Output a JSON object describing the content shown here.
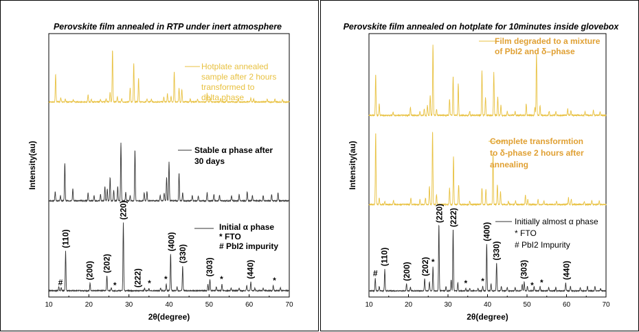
{
  "colors": {
    "yellow": "#e8c140",
    "orange": "#e0a033",
    "black": "#333333"
  },
  "chart_data": [
    {
      "type": "line",
      "title": "Perovskite film annealed in RTP under inert atmosphere",
      "xlabel": "2θ(degree)",
      "ylabel": "Intensity(au)",
      "xlim": [
        10,
        70
      ],
      "xticks": [
        "10",
        "20",
        "30",
        "40",
        "50",
        "60",
        "70"
      ],
      "series": [
        {
          "color": "#e8c140",
          "legend_lines": [
            "Hotplate annealed",
            "sample after 2 hours",
            " transformed to",
            "delta phase"
          ],
          "legend_bold": false,
          "peaks": [
            [
              11.7,
              1
            ],
            [
              13,
              0.15
            ],
            [
              14.1,
              0.1
            ],
            [
              16.1,
              0.08
            ],
            [
              19.8,
              0.25
            ],
            [
              20.6,
              0.1
            ],
            [
              22.9,
              0.1
            ],
            [
              24.3,
              0.12
            ],
            [
              25.3,
              0.35
            ],
            [
              25.9,
              1.9
            ],
            [
              27.1,
              0.18
            ],
            [
              28.2,
              0.12
            ],
            [
              30.3,
              0.5
            ],
            [
              31.2,
              1.4
            ],
            [
              32.4,
              0.85
            ],
            [
              34.5,
              0.12
            ],
            [
              35.6,
              0.1
            ],
            [
              38.7,
              0.18
            ],
            [
              39.6,
              0.3
            ],
            [
              40.5,
              0.2
            ],
            [
              41.3,
              1.1
            ],
            [
              42.5,
              0.5
            ],
            [
              43.2,
              0.45
            ],
            [
              45.3,
              0.1
            ],
            [
              47.1,
              0.1
            ],
            [
              49.5,
              0.3
            ],
            [
              50.3,
              0.15
            ],
            [
              52.9,
              0.12
            ],
            [
              54.4,
              0.1
            ],
            [
              57.3,
              0.1
            ],
            [
              60.4,
              0.15
            ],
            [
              61.1,
              0.12
            ],
            [
              64.5,
              0.1
            ],
            [
              66.4,
              0.1
            ],
            [
              68.3,
              0.08
            ]
          ]
        },
        {
          "color": "#333333",
          "legend_lines": [
            "Stable α phase after",
            "30 days"
          ],
          "legend_bold": true,
          "peaks": [
            [
              11.6,
              0.35
            ],
            [
              12.9,
              0.2
            ],
            [
              14,
              1.45
            ],
            [
              16,
              0.45
            ],
            [
              19.8,
              0.3
            ],
            [
              21.3,
              0.2
            ],
            [
              22.9,
              0.25
            ],
            [
              24,
              0.55
            ],
            [
              24.6,
              0.45
            ],
            [
              25.3,
              0.9
            ],
            [
              26.2,
              0.4
            ],
            [
              27.2,
              0.55
            ],
            [
              28,
              2.25
            ],
            [
              29.2,
              0.35
            ],
            [
              30.3,
              0.2
            ],
            [
              31.5,
              1.95
            ],
            [
              33.8,
              0.3
            ],
            [
              34.5,
              0.35
            ],
            [
              37.8,
              0.2
            ],
            [
              38.8,
              0.3
            ],
            [
              39.4,
              0.9
            ],
            [
              40,
              1.5
            ],
            [
              42.5,
              1.05
            ],
            [
              43.4,
              0.3
            ],
            [
              45.8,
              0.2
            ],
            [
              47.3,
              0.2
            ],
            [
              49.5,
              0.3
            ],
            [
              51.2,
              0.25
            ],
            [
              52.6,
              0.2
            ],
            [
              55.6,
              0.2
            ],
            [
              57.5,
              0.25
            ],
            [
              59.5,
              0.35
            ],
            [
              60.8,
              0.2
            ],
            [
              63.5,
              0.2
            ],
            [
              65.6,
              0.25
            ],
            [
              67.2,
              0.3
            ]
          ]
        },
        {
          "color": "#333333",
          "legend_lines": [
            "Initial α phase",
            "* FTO",
            "# PbI2 impurity"
          ],
          "legend_bold": true,
          "peaks": [
            [
              12.5,
              0.15
            ],
            [
              13.1,
              0.12
            ],
            [
              14.2,
              1.55
            ],
            [
              20.3,
              0.3
            ],
            [
              24.5,
              0.6
            ],
            [
              25.6,
              0.12
            ],
            [
              28.6,
              2.7
            ],
            [
              33.9,
              0.1
            ],
            [
              35,
              0.08
            ],
            [
              37.9,
              0.1
            ],
            [
              39.3,
              0.25
            ],
            [
              40.4,
              1.45
            ],
            [
              42,
              0.15
            ],
            [
              43.4,
              0.95
            ],
            [
              49.7,
              0.25
            ],
            [
              50.2,
              0.45
            ],
            [
              51.8,
              0.15
            ],
            [
              53.2,
              0.25
            ],
            [
              55.5,
              0.1
            ],
            [
              57.5,
              0.1
            ],
            [
              59.4,
              0.2
            ],
            [
              60.4,
              0.35
            ],
            [
              61.4,
              0.1
            ],
            [
              63.5,
              0.1
            ],
            [
              66,
              0.2
            ],
            [
              67.8,
              0.12
            ]
          ],
          "labels": [
            {
              "text": "#",
              "x": 12.9
            },
            {
              "text": "(110)",
              "x": 14.2
            },
            {
              "text": "(200)",
              "x": 20.2
            },
            {
              "text": "(202)",
              "x": 24.5
            },
            {
              "text": "*",
              "x": 26.5
            },
            {
              "text": "(220)",
              "x": 28.6
            },
            {
              "text": "(222)",
              "x": 32.2
            },
            {
              "text": "*",
              "x": 35.1
            },
            {
              "text": "*",
              "x": 39.2
            },
            {
              "text": "(400)",
              "x": 40.6
            },
            {
              "text": "(330)",
              "x": 43.4
            },
            {
              "text": "(303)",
              "x": 50.1
            },
            {
              "text": "*",
              "x": 53.1
            },
            {
              "text": "(440)",
              "x": 60.3
            },
            {
              "text": "*",
              "x": 66.3
            }
          ]
        }
      ]
    },
    {
      "type": "line",
      "title": "Perovskite film annealed on hotplate for 10minutes inside glovebox",
      "xlabel": "2θ(degree)",
      "ylabel": "Intensity(au)",
      "xlim": [
        10,
        70
      ],
      "xticks": [
        "10",
        "20",
        "30",
        "40",
        "50",
        "60",
        "70"
      ],
      "series": [
        {
          "color": "#e8c140",
          "legend_lines": [
            "Film degraded to a mixture",
            "of PbI2 and δ–phase"
          ],
          "legend_bold": true,
          "peaks": [
            [
              11.7,
              1.25
            ],
            [
              12.6,
              0.35
            ],
            [
              16.1,
              0.1
            ],
            [
              20.5,
              0.25
            ],
            [
              22.9,
              0.12
            ],
            [
              24,
              0.2
            ],
            [
              24.8,
              0.3
            ],
            [
              25.5,
              0.6
            ],
            [
              26.2,
              2.15
            ],
            [
              27.1,
              0.2
            ],
            [
              30.4,
              0.5
            ],
            [
              31.3,
              1.2
            ],
            [
              32.6,
              0.95
            ],
            [
              35.5,
              0.12
            ],
            [
              38.6,
              1.35
            ],
            [
              39.5,
              0.55
            ],
            [
              41.6,
              1.3
            ],
            [
              42.6,
              0.55
            ],
            [
              43.4,
              0.3
            ],
            [
              45,
              0.12
            ],
            [
              47,
              0.12
            ],
            [
              49.8,
              0.35
            ],
            [
              52,
              0.25
            ],
            [
              52.4,
              1.9
            ],
            [
              53.3,
              0.3
            ],
            [
              55.6,
              0.12
            ],
            [
              57.3,
              0.12
            ],
            [
              60.3,
              0.2
            ],
            [
              61.1,
              0.15
            ],
            [
              64.7,
              0.1
            ],
            [
              66.8,
              0.15
            ],
            [
              68.5,
              0.1
            ]
          ]
        },
        {
          "color": "#e8c140",
          "legend_lines": [
            "Complete transformtion",
            "to δ-phase 2 hours after",
            "annealing"
          ],
          "legend_bold": true,
          "peaks": [
            [
              11.7,
              2.2
            ],
            [
              12.6,
              0.2
            ],
            [
              14,
              0.1
            ],
            [
              16.2,
              0.12
            ],
            [
              20.6,
              0.2
            ],
            [
              22.9,
              0.15
            ],
            [
              24.3,
              0.2
            ],
            [
              25.3,
              0.55
            ],
            [
              26.1,
              2.25
            ],
            [
              27.1,
              0.3
            ],
            [
              30.4,
              0.5
            ],
            [
              31.4,
              1.45
            ],
            [
              32.7,
              0.6
            ],
            [
              35.5,
              0.1
            ],
            [
              38.6,
              0.5
            ],
            [
              39.6,
              0.45
            ],
            [
              41.4,
              1.55
            ],
            [
              42.5,
              0.6
            ],
            [
              43.3,
              0.4
            ],
            [
              45.3,
              0.1
            ],
            [
              47.1,
              0.1
            ],
            [
              49.6,
              0.3
            ],
            [
              50.2,
              0.15
            ],
            [
              52.8,
              0.15
            ],
            [
              54.3,
              0.1
            ],
            [
              57.5,
              0.1
            ],
            [
              60.5,
              0.2
            ],
            [
              61.2,
              0.15
            ],
            [
              64.5,
              0.1
            ],
            [
              66.4,
              0.12
            ],
            [
              68.3,
              0.1
            ]
          ]
        },
        {
          "color": "#333333",
          "legend_lines": [
            "Initially almost α phase",
            "* FTO",
            "# PbI2 Impurity"
          ],
          "legend_bold": false,
          "peaks": [
            [
              11.6,
              0.55
            ],
            [
              12.6,
              0.2
            ],
            [
              14,
              0.95
            ],
            [
              19.5,
              0.3
            ],
            [
              20.5,
              0.15
            ],
            [
              24.1,
              0.55
            ],
            [
              25.3,
              0.4
            ],
            [
              26.2,
              1.05
            ],
            [
              27.7,
              2.95
            ],
            [
              29.5,
              0.2
            ],
            [
              30.8,
              0.5
            ],
            [
              31.3,
              2.75
            ],
            [
              32.5,
              0.35
            ],
            [
              34.5,
              0.12
            ],
            [
              35.5,
              0.1
            ],
            [
              37.6,
              0.12
            ],
            [
              38.8,
              0.2
            ],
            [
              39.8,
              2.05
            ],
            [
              40.9,
              0.3
            ],
            [
              42.3,
              1.25
            ],
            [
              43.5,
              0.2
            ],
            [
              45,
              0.15
            ],
            [
              47,
              0.15
            ],
            [
              48.8,
              0.3
            ],
            [
              49.3,
              0.4
            ],
            [
              50.1,
              0.2
            ],
            [
              51.8,
              0.2
            ],
            [
              53.3,
              0.2
            ],
            [
              55.5,
              0.15
            ],
            [
              57.3,
              0.15
            ],
            [
              59.8,
              0.35
            ],
            [
              61,
              0.2
            ],
            [
              63.5,
              0.15
            ],
            [
              65.3,
              0.2
            ],
            [
              67.2,
              0.2
            ],
            [
              68.6,
              0.12
            ]
          ],
          "labels": [
            {
              "text": "#",
              "x": 11.6
            },
            {
              "text": "(110)",
              "x": 13.9
            },
            {
              "text": "(200)",
              "x": 19.6
            },
            {
              "text": "(202)",
              "x": 24.3
            },
            {
              "text": "*",
              "x": 26.2
            },
            {
              "text": "(220)",
              "x": 27.8
            },
            {
              "text": "(222)",
              "x": 31.4
            },
            {
              "text": "*",
              "x": 34.5
            },
            {
              "text": "*",
              "x": 38.8
            },
            {
              "text": "(400)",
              "x": 39.8
            },
            {
              "text": "(330)",
              "x": 42.3
            },
            {
              "text": "(303)",
              "x": 49.2
            },
            {
              "text": "*",
              "x": 51.3
            },
            {
              "text": "*",
              "x": 53.7
            },
            {
              "text": "(440)",
              "x": 60
            }
          ]
        }
      ]
    }
  ]
}
